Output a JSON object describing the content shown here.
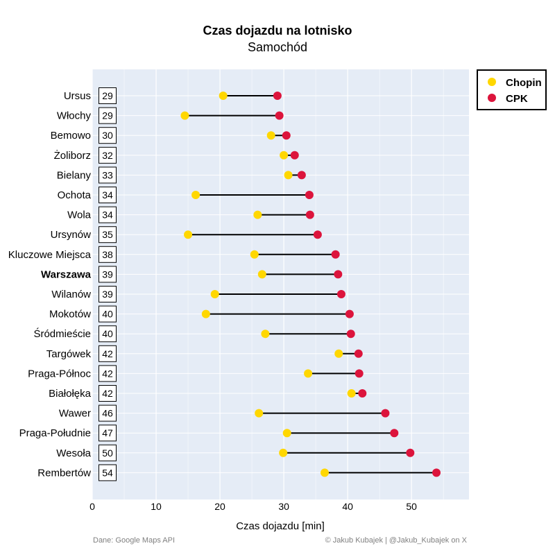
{
  "chart_data": {
    "type": "dumbbell",
    "title": "Czas dojazdu na lotnisko",
    "subtitle": "Samochód",
    "xlabel": "Czas dojazdu [min]",
    "ylabel": "",
    "xlim": [
      0,
      59
    ],
    "xticks": [
      0,
      10,
      20,
      30,
      40,
      50
    ],
    "grid": true,
    "legend_position": "top-right",
    "highlighted_category": "Warszawa",
    "series": [
      {
        "name": "Chopin",
        "color": "#FFD700"
      },
      {
        "name": "CPK",
        "color": "#DC143C"
      }
    ],
    "rows": [
      {
        "district": "Ursus",
        "label": "29",
        "chopin": 20.5,
        "cpk": 29.0
      },
      {
        "district": "Włochy",
        "label": "29",
        "chopin": 14.5,
        "cpk": 29.3
      },
      {
        "district": "Bemowo",
        "label": "30",
        "chopin": 28.0,
        "cpk": 30.4
      },
      {
        "district": "Żoliborz",
        "label": "32",
        "chopin": 30.0,
        "cpk": 31.7
      },
      {
        "district": "Bielany",
        "label": "33",
        "chopin": 30.7,
        "cpk": 32.8
      },
      {
        "district": "Ochota",
        "label": "34",
        "chopin": 16.2,
        "cpk": 34.0
      },
      {
        "district": "Wola",
        "label": "34",
        "chopin": 25.9,
        "cpk": 34.1
      },
      {
        "district": "Ursynów",
        "label": "35",
        "chopin": 15.0,
        "cpk": 35.3
      },
      {
        "district": "Kluczowe Miejsca",
        "label": "38",
        "chopin": 25.4,
        "cpk": 38.1
      },
      {
        "district": "Warszawa",
        "label": "39",
        "chopin": 26.6,
        "cpk": 38.5
      },
      {
        "district": "Wilanów",
        "label": "39",
        "chopin": 19.2,
        "cpk": 39.0
      },
      {
        "district": "Mokotów",
        "label": "40",
        "chopin": 17.8,
        "cpk": 40.3
      },
      {
        "district": "Śródmieście",
        "label": "40",
        "chopin": 27.1,
        "cpk": 40.5
      },
      {
        "district": "Targówek",
        "label": "42",
        "chopin": 38.6,
        "cpk": 41.7
      },
      {
        "district": "Praga-Północ",
        "label": "42",
        "chopin": 33.8,
        "cpk": 41.8
      },
      {
        "district": "Białołęka",
        "label": "42",
        "chopin": 40.6,
        "cpk": 42.3
      },
      {
        "district": "Wawer",
        "label": "46",
        "chopin": 26.1,
        "cpk": 45.9
      },
      {
        "district": "Praga-Południe",
        "label": "47",
        "chopin": 30.5,
        "cpk": 47.3
      },
      {
        "district": "Wesoła",
        "label": "50",
        "chopin": 29.9,
        "cpk": 49.8
      },
      {
        "district": "Rembertów",
        "label": "54",
        "chopin": 36.4,
        "cpk": 53.9
      }
    ],
    "source_note": "Dane: Google Maps API",
    "credit_note": "© Jakub Kubajek | @Jakub_Kubajek on X"
  }
}
